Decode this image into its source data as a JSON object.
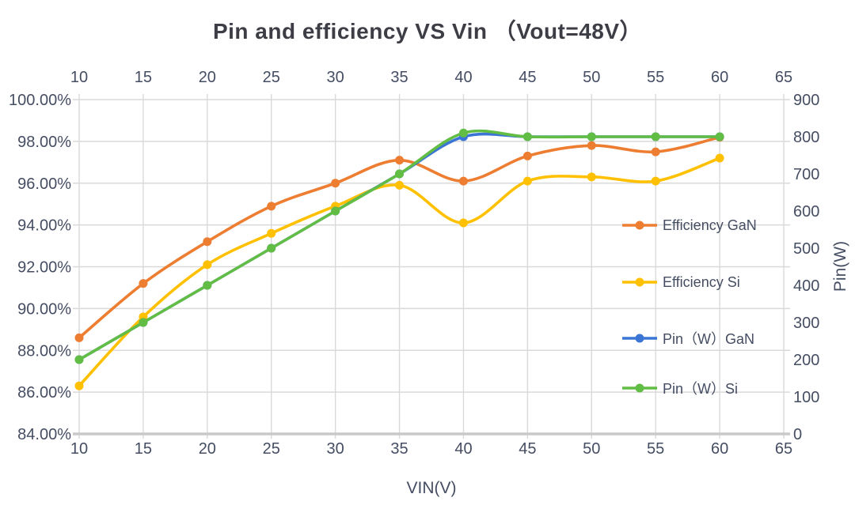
{
  "title": "Pin and efficiency VS Vin （Vout=48V）",
  "chart_data": {
    "type": "line",
    "title": "Pin and efficiency VS Vin （Vout=48V）",
    "smooth_lines": true,
    "grid": true,
    "legend_position": "right-inside",
    "x_axis": {
      "label": "VIN(V)",
      "ticks": [
        10,
        15,
        20,
        25,
        30,
        35,
        40,
        45,
        50,
        55,
        60,
        65
      ],
      "range": [
        10,
        65
      ],
      "tick_label_sides": "top-and-bottom"
    },
    "y_left": {
      "ticks": [
        "100.00%",
        "98.00%",
        "96.00%",
        "94.00%",
        "92.00%",
        "90.00%",
        "88.00%",
        "86.00%",
        "84.00%"
      ],
      "tick_values": [
        100,
        98,
        96,
        94,
        92,
        90,
        88,
        86,
        84
      ],
      "range": [
        84,
        100
      ],
      "unit": "%"
    },
    "y_right": {
      "label": "Pin(W)",
      "ticks": [
        900,
        800,
        700,
        600,
        500,
        400,
        300,
        200,
        100,
        0
      ],
      "range": [
        0,
        900
      ]
    },
    "x": [
      10,
      15,
      20,
      25,
      30,
      35,
      40,
      45,
      50,
      55,
      60
    ],
    "series": [
      {
        "name": "Efficiency GaN",
        "axis": "left",
        "color": "#ED7D31",
        "values": [
          88.6,
          91.2,
          93.2,
          94.9,
          96.0,
          97.1,
          96.1,
          97.3,
          97.8,
          97.5,
          98.2
        ]
      },
      {
        "name": "Efficiency Si",
        "axis": "left",
        "color": "#FFC000",
        "values": [
          86.3,
          89.6,
          92.1,
          93.6,
          94.9,
          95.9,
          94.1,
          96.1,
          96.3,
          96.1,
          97.2
        ]
      },
      {
        "name": "Pin（W）GaN",
        "axis": "right",
        "color": "#3B76D6",
        "values": [
          200,
          300,
          400,
          500,
          600,
          700,
          800,
          800,
          800,
          800,
          800
        ]
      },
      {
        "name": "Pin（W）Si",
        "axis": "right",
        "color": "#62BD45",
        "values": [
          200,
          300,
          400,
          500,
          600,
          700,
          810,
          800,
          800,
          800,
          800
        ]
      }
    ],
    "style_colors": {
      "gridline": "#D9D9D9",
      "axis_line": "#C9C9C9",
      "tick_text": "#454d63",
      "title_text": "#3d3d46"
    }
  }
}
